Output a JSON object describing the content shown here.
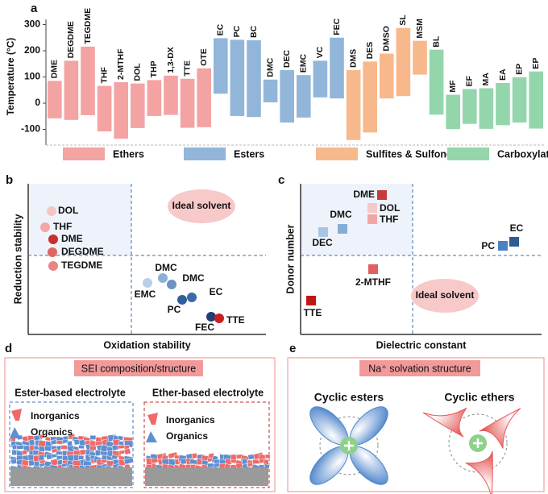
{
  "chart_data": {
    "type": "floating-bar",
    "panel_label": "a",
    "ylabel": "Temperature (°C)",
    "ylim": [
      -160,
      320
    ],
    "yticks": [
      -100,
      0,
      100,
      200,
      300
    ],
    "series": [
      {
        "name": "Ethers",
        "color": "#f4a3a3",
        "categories": [
          "DME",
          "DEGDME",
          "TEGDME",
          "THF",
          "2-MTHF",
          "DOL",
          "THP",
          "1,3-DX",
          "TTE",
          "OTE"
        ],
        "low": [
          -58,
          -64,
          -46,
          -108,
          -136,
          -95,
          -49,
          -45,
          -94,
          -92
        ],
        "high": [
          85,
          162,
          216,
          66,
          80,
          75,
          88,
          105,
          93,
          133
        ]
      },
      {
        "name": "Esters",
        "color": "#92b6da",
        "categories": [
          "EC",
          "PC",
          "BC",
          "DMC",
          "DEC",
          "EMC",
          "VC",
          "FEC"
        ],
        "low": [
          36,
          -49,
          -53,
          3,
          -74,
          -55,
          22,
          18
        ],
        "high": [
          248,
          242,
          240,
          90,
          126,
          107,
          162,
          250
        ]
      },
      {
        "name": "Sulfites & Sulfones",
        "color": "#f7b98c",
        "categories": [
          "DMS",
          "DES",
          "DMSO",
          "SL",
          "MSM"
        ],
        "low": [
          -141,
          -112,
          18,
          27,
          109
        ],
        "high": [
          126,
          159,
          189,
          287,
          238
        ]
      },
      {
        "name": "Carboxylates",
        "color": "#93d6ab",
        "categories": [
          "BL",
          "MF",
          "EF",
          "MA",
          "EA",
          "EP",
          "EP"
        ],
        "low": [
          -44,
          -99,
          -79,
          -98,
          -84,
          -74,
          -97
        ],
        "high": [
          204,
          32,
          54,
          57,
          77,
          99,
          121
        ]
      }
    ]
  },
  "panel_b": {
    "label": "b",
    "xlabel": "Oxidation stability",
    "ylabel": "Reduction stability",
    "ideal": "Ideal solvent",
    "points": [
      {
        "label": "DOL",
        "color": "#f7c4c4"
      },
      {
        "label": "THF",
        "color": "#f2a7a7"
      },
      {
        "label": "DME",
        "color": "#c8302f"
      },
      {
        "label": "DEGDME",
        "color": "#e06666"
      },
      {
        "label": "TEGDME",
        "color": "#e98585"
      },
      {
        "label": "EMC",
        "color": "#b9cfe6"
      },
      {
        "label": "DMC",
        "color": "#8fb0d6"
      },
      {
        "label": "DMC",
        "color": "#6b93c6"
      },
      {
        "label": "EC",
        "color": "#3a6aa8"
      },
      {
        "label": "PC",
        "color": "#2f5f9e"
      },
      {
        "label": "FEC",
        "color": "#1e3f73"
      },
      {
        "label": "TTE",
        "color": "#c91f1f"
      }
    ]
  },
  "panel_c": {
    "label": "c",
    "xlabel": "Dielectric constant",
    "ylabel": "Donor number",
    "ideal": "Ideal solvent",
    "points": [
      {
        "label": "DME",
        "color": "#c93a3a"
      },
      {
        "label": "DOL",
        "color": "#f6c9c9"
      },
      {
        "label": "THF",
        "color": "#f1a6a6"
      },
      {
        "label": "DMC",
        "color": "#86acd6"
      },
      {
        "label": "DEC",
        "color": "#a9c5e6"
      },
      {
        "label": "EC",
        "color": "#2f5a92"
      },
      {
        "label": "PC",
        "color": "#4a80c4"
      },
      {
        "label": "2-MTHF",
        "color": "#e06060"
      },
      {
        "label": "TTE",
        "color": "#c21616"
      }
    ]
  },
  "panel_d": {
    "label": "d",
    "title": "SEI composition/structure",
    "left": "Ester-based electrolyte",
    "right": "Ether-based electrolyte",
    "inorganics": "Inorganics",
    "organics": "Organics"
  },
  "panel_e": {
    "label": "e",
    "title": "Na⁺ solvation structure",
    "left": "Cyclic esters",
    "right": "Cyclic ethers"
  }
}
